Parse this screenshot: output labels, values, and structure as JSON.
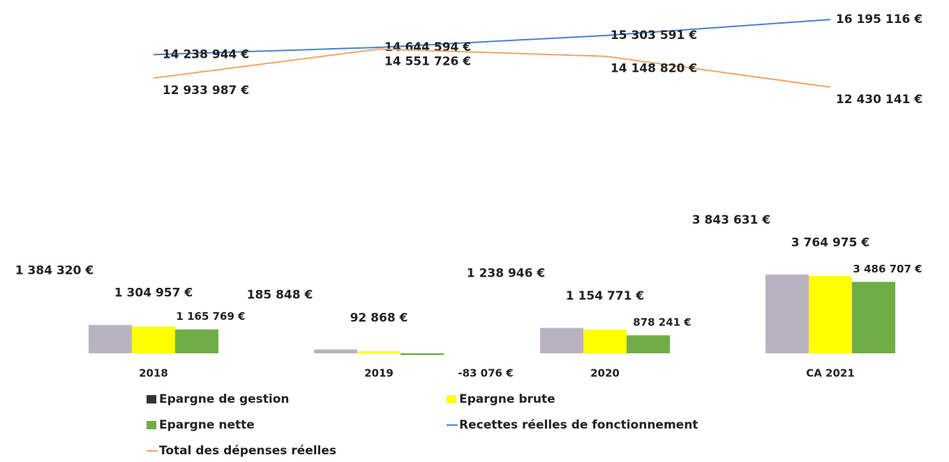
{
  "chart_data": {
    "type": "combo",
    "categories": [
      "2018",
      "2019",
      "2020",
      "CA 2021"
    ],
    "negative_color": "#e02020",
    "series": [
      {
        "name": "Epargne de gestion",
        "kind": "bar",
        "color": "#b9b3c1",
        "legend_color": "#333333",
        "values": [
          1384320,
          185848,
          1238946,
          3843631
        ],
        "value_labels": [
          "1 384 320 €",
          "185 848 €",
          "1 238 946 €",
          "3 843 631 €"
        ]
      },
      {
        "name": "Epargne brute",
        "kind": "bar",
        "color": "#ffff00",
        "values": [
          1304957,
          92868,
          1154771,
          3764975
        ],
        "value_labels": [
          "1 304 957 €",
          "92 868 €",
          "1 154 771 €",
          "3 764 975 €"
        ]
      },
      {
        "name": "Epargne nette",
        "kind": "bar",
        "color": "#70ad47",
        "values": [
          1165769,
          -83076,
          878241,
          3486707
        ],
        "value_labels": [
          "1 165 769 €",
          "-83 076 €",
          "878 241 €",
          "3 486 707 €"
        ]
      },
      {
        "name": "Recettes réelles de fonctionnement",
        "kind": "line",
        "color": "#4a7fd0",
        "values": [
          14238944,
          14644594,
          15303591,
          16195116
        ],
        "value_labels": [
          "14 238 944 €",
          "14 644 594 €",
          "15 303 591 €",
          "16 195 116 €"
        ]
      },
      {
        "name": "Total des dépenses réelles",
        "kind": "line",
        "color": "#f4a46a",
        "values": [
          12933987,
          14551726,
          14148820,
          12430141
        ],
        "value_labels": [
          "12 933 987 €",
          "14 551 726 €",
          "14 148 820 €",
          "12 430 141 €"
        ]
      }
    ]
  }
}
